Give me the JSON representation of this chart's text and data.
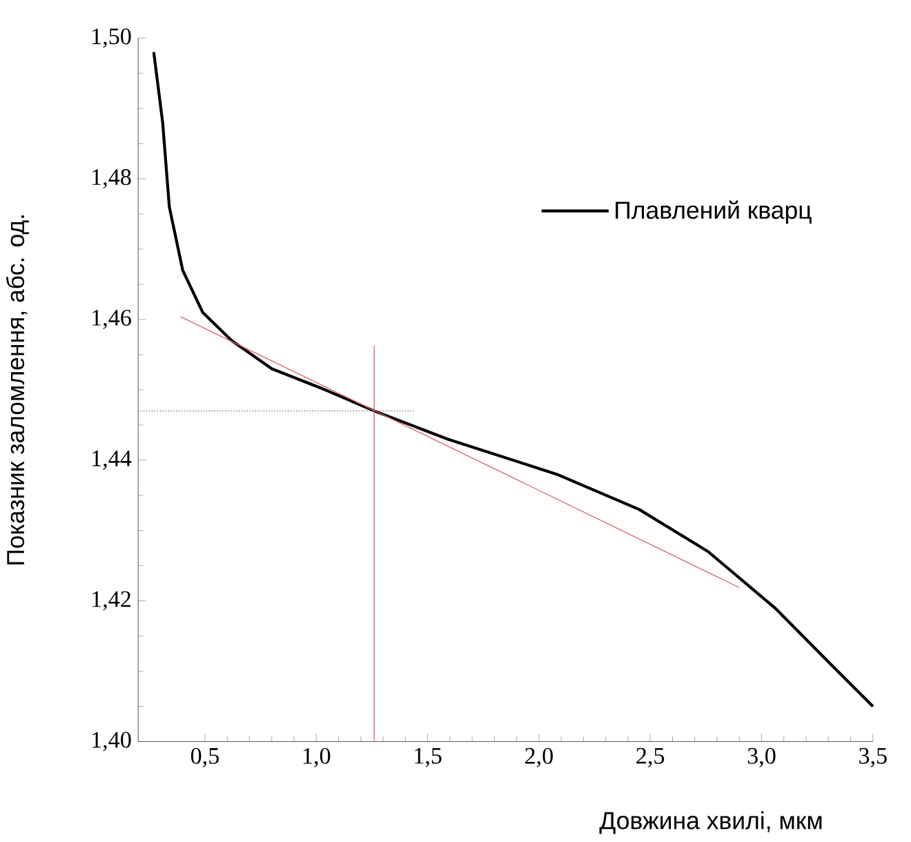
{
  "chart_data": {
    "type": "line",
    "xlabel": "Довжина хвилі, мкм",
    "ylabel": "Показник заломлення, абс. од.",
    "xlim": [
      0.2,
      3.5
    ],
    "ylim": [
      1.4,
      1.5
    ],
    "xticks": [
      {
        "value": 0.5,
        "label": "0,5"
      },
      {
        "value": 1.0,
        "label": "1,0"
      },
      {
        "value": 1.5,
        "label": "1,5"
      },
      {
        "value": 2.0,
        "label": "2,0"
      },
      {
        "value": 2.5,
        "label": "2,5"
      },
      {
        "value": 3.0,
        "label": "3,0"
      },
      {
        "value": 3.5,
        "label": "3,5"
      }
    ],
    "yticks": [
      {
        "value": 1.4,
        "label": "1,40"
      },
      {
        "value": 1.42,
        "label": "1,42"
      },
      {
        "value": 1.44,
        "label": "1,44"
      },
      {
        "value": 1.46,
        "label": "1,46"
      },
      {
        "value": 1.48,
        "label": "1,48"
      },
      {
        "value": 1.5,
        "label": "1,50"
      }
    ],
    "grid": false,
    "legend": "top right",
    "marker": "none",
    "series": [
      {
        "name": "Плавлений кварц",
        "color": "#000000",
        "line_style": "solid",
        "x": [
          0.27,
          0.31,
          0.34,
          0.4,
          0.49,
          0.62,
          0.8,
          1.04,
          1.26,
          1.59,
          2.08,
          2.45,
          2.76,
          3.06,
          3.31,
          3.5
        ],
        "values": [
          1.498,
          1.488,
          1.476,
          1.467,
          1.461,
          1.457,
          1.453,
          1.45,
          1.447,
          1.443,
          1.438,
          1.433,
          1.427,
          1.419,
          1.411,
          1.405
        ]
      },
      {
        "color": "#e06060",
        "line_style": "solid",
        "x": [
          0.39,
          2.9
        ],
        "values": [
          1.4604,
          1.4219
        ]
      },
      {
        "color": "#e06060",
        "line_style": "solid",
        "x": [
          1.26,
          1.26
        ],
        "values": [
          1.4,
          1.4563
        ]
      },
      {
        "color": "#555555",
        "line_style": "dotted",
        "x": [
          0.2,
          1.44
        ],
        "values": [
          1.447,
          1.447
        ]
      }
    ]
  }
}
